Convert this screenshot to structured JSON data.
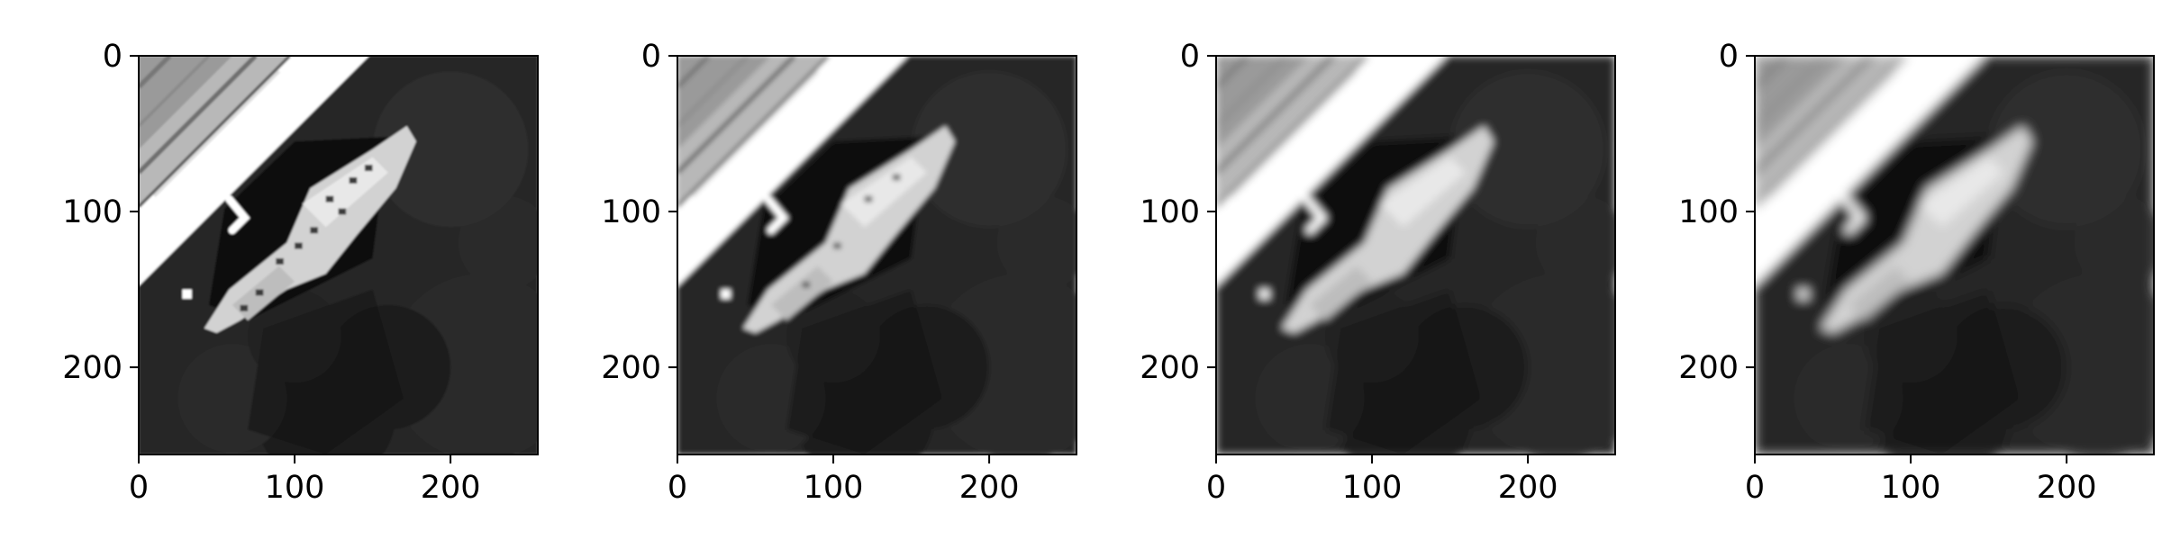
{
  "figure": {
    "background_color": "#ffffff",
    "axis_color": "#000000"
  },
  "chart_data": [
    {
      "type": "heatmap",
      "title": "",
      "xlabel": "",
      "ylabel": "",
      "xlim": [
        0,
        256
      ],
      "ylim": [
        256,
        0
      ],
      "x_ticks": [
        0,
        100,
        200
      ],
      "y_ticks": [
        0,
        100,
        200
      ],
      "colormap": "gray",
      "blur": 0.6,
      "content": "grayscale aerial image: pier at upper-left, docked ship diagonal, dark water"
    },
    {
      "type": "heatmap",
      "title": "",
      "xlabel": "",
      "ylabel": "",
      "xlim": [
        0,
        256
      ],
      "ylim": [
        256,
        0
      ],
      "x_ticks": [
        0,
        100,
        200
      ],
      "y_ticks": [
        0,
        100,
        200
      ],
      "colormap": "gray",
      "blur": 1.6,
      "content": "grayscale aerial image: pier at upper-left, docked ship diagonal, dark water"
    },
    {
      "type": "heatmap",
      "title": "",
      "xlabel": "",
      "ylabel": "",
      "xlim": [
        0,
        256
      ],
      "ylim": [
        256,
        0
      ],
      "x_ticks": [
        0,
        100,
        200
      ],
      "y_ticks": [
        0,
        100,
        200
      ],
      "colormap": "gray",
      "blur": 2.6,
      "content": "grayscale aerial image: pier at upper-left, docked ship diagonal, dark water"
    },
    {
      "type": "heatmap",
      "title": "",
      "xlabel": "",
      "ylabel": "",
      "xlim": [
        0,
        256
      ],
      "ylim": [
        256,
        0
      ],
      "x_ticks": [
        0,
        100,
        200
      ],
      "y_ticks": [
        0,
        100,
        200
      ],
      "colormap": "gray",
      "blur": 3.6,
      "content": "grayscale aerial image: pier at upper-left, docked ship diagonal, dark water"
    }
  ]
}
